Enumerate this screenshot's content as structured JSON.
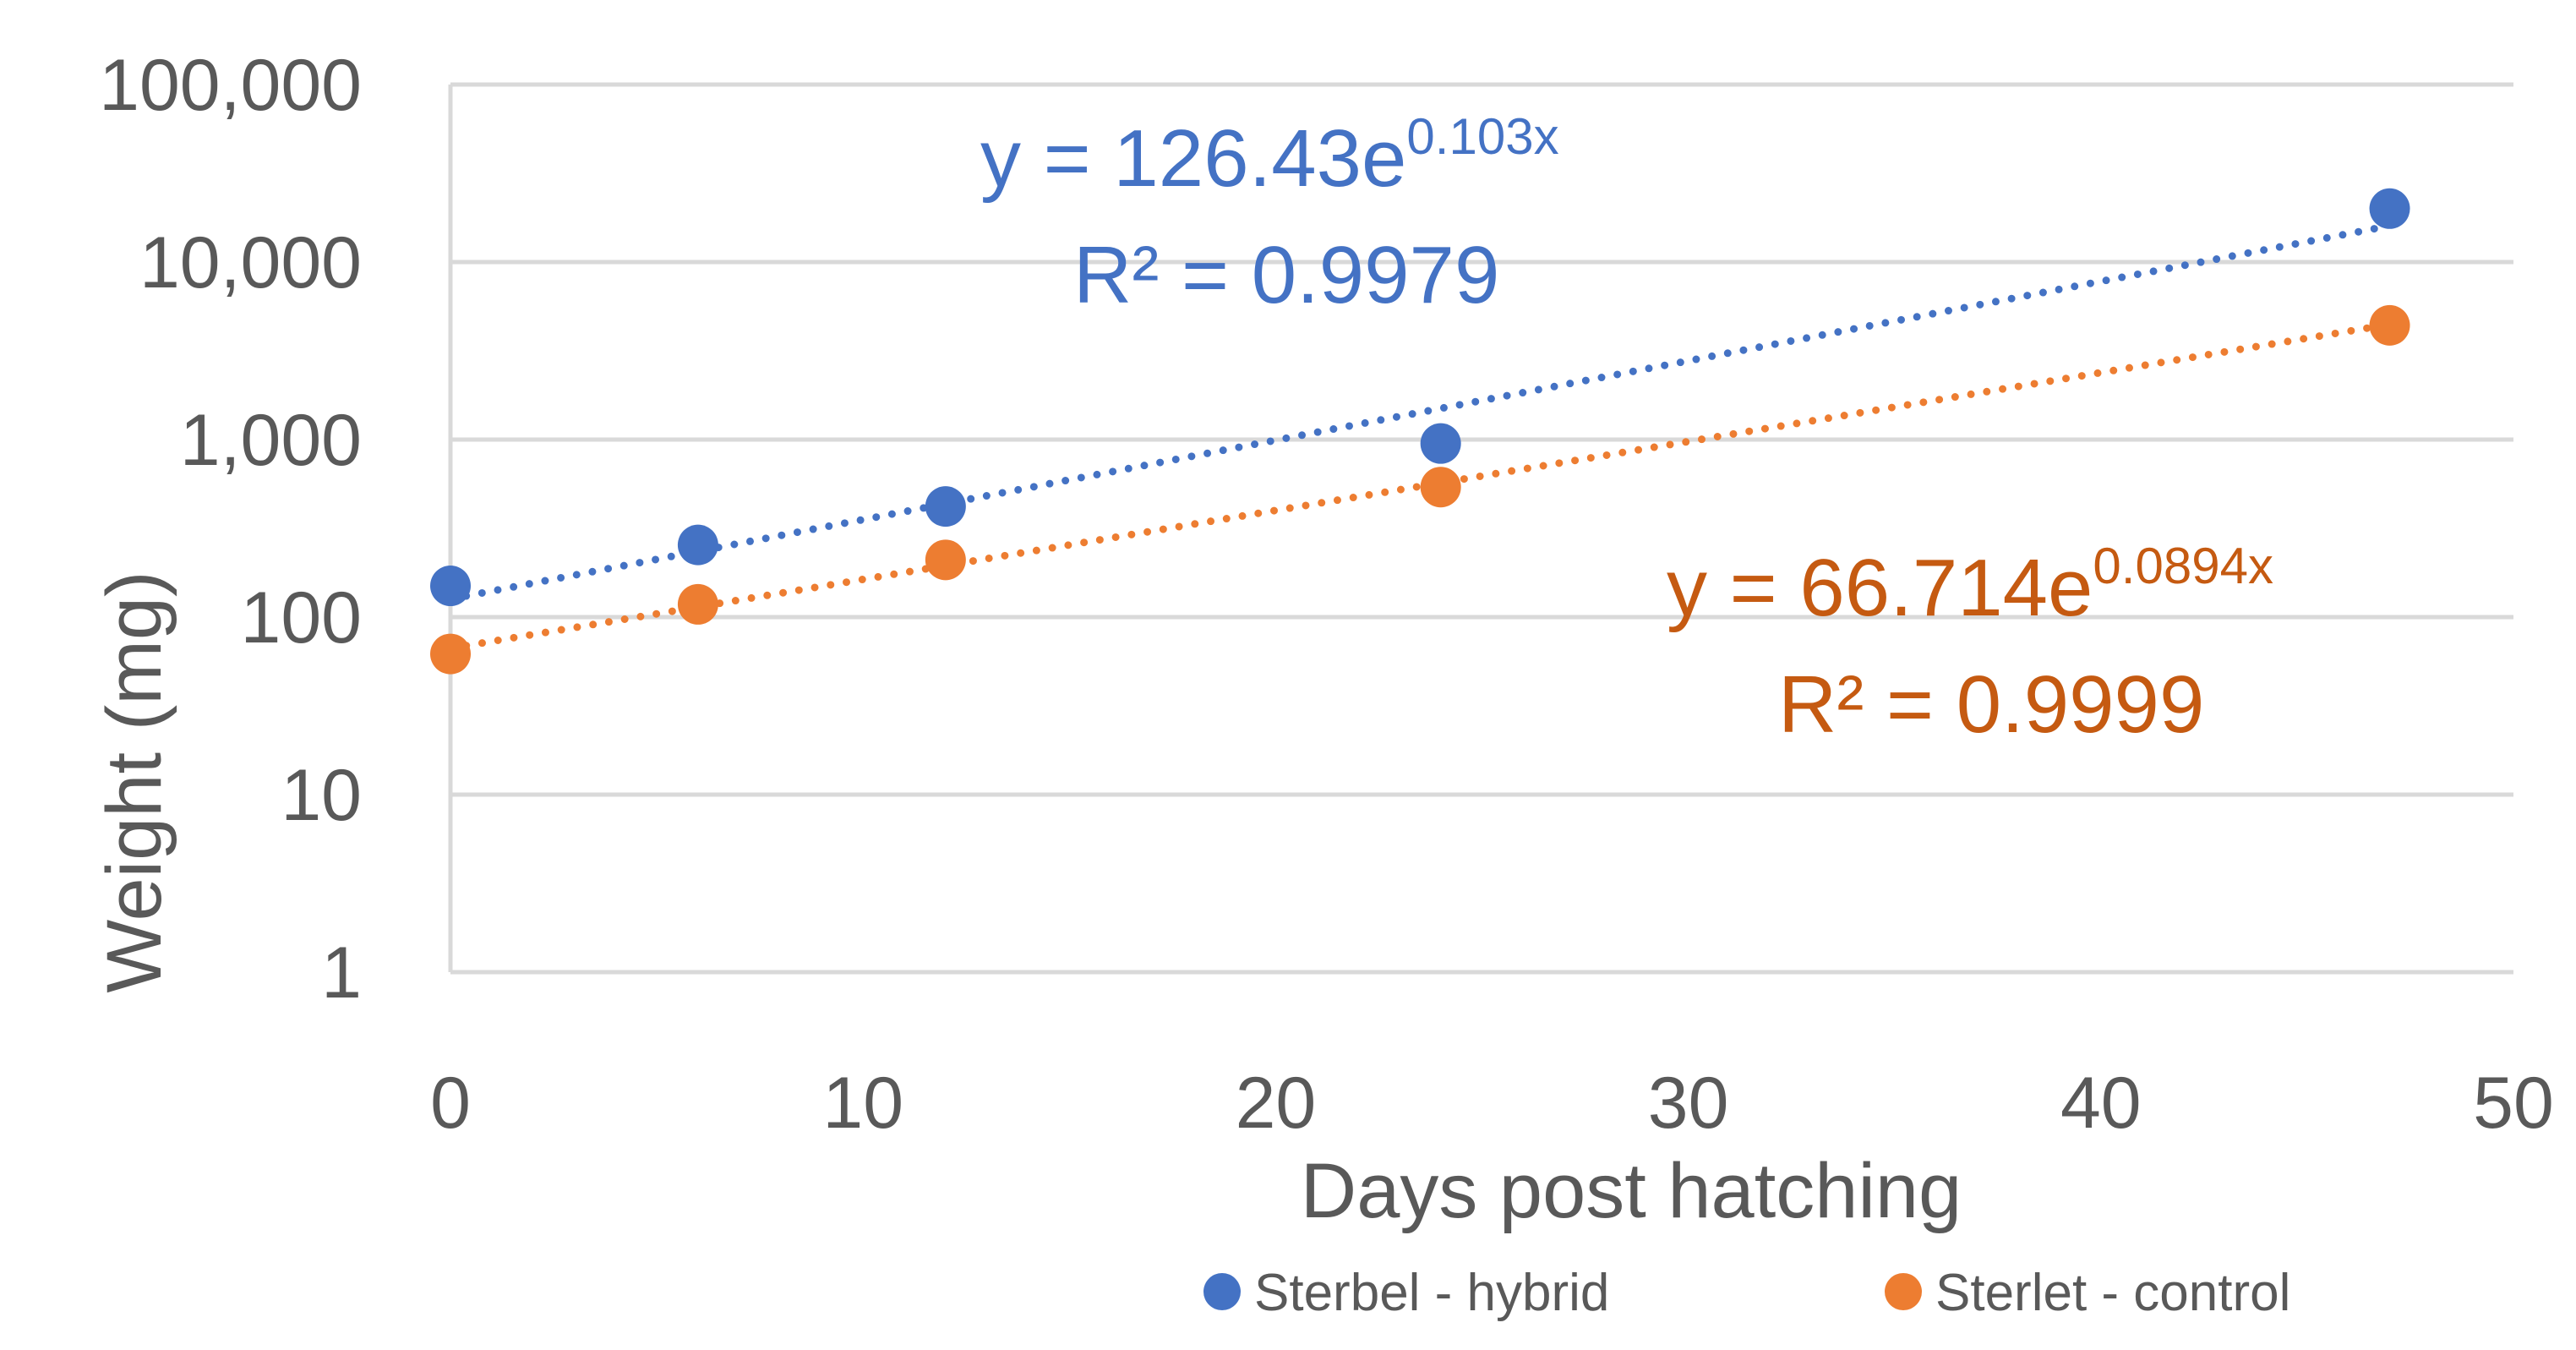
{
  "chart_data": {
    "type": "scatter",
    "xlabel": "Days post hatching",
    "ylabel": "Weight (mg)",
    "xlim": [
      0,
      50
    ],
    "ylim": [
      1,
      100000
    ],
    "yscale": "log",
    "grid": true,
    "legend_position": "bottom",
    "x_ticks": [
      "0",
      "10",
      "20",
      "30",
      "40",
      "50"
    ],
    "y_ticks": [
      "1",
      "10",
      "100",
      "1,000",
      "10,000",
      "100,000"
    ],
    "series": [
      {
        "name": "Sterbel - hybrid",
        "color": "#4472C4",
        "x": [
          0,
          6,
          12,
          24,
          47
        ],
        "y": [
          150,
          255,
          420,
          950,
          20000
        ],
        "trendline": {
          "type": "exponential",
          "a": 126.43,
          "b": 0.103,
          "equation_base": "y = 126.43e",
          "equation_exp": "0.103x",
          "r2_label": "R² = 0.9979",
          "label_color": "#4472C4"
        }
      },
      {
        "name": "Sterlet - control",
        "color": "#ED7D31",
        "x": [
          0,
          6,
          12,
          24,
          47
        ],
        "y": [
          62,
          118,
          210,
          540,
          4400
        ],
        "trendline": {
          "type": "exponential",
          "a": 66.714,
          "b": 0.0894,
          "equation_base": "y = 66.714e",
          "equation_exp": "0.0894x",
          "r2_label": "R² = 0.9999",
          "label_color": "#C55A11"
        }
      }
    ]
  }
}
